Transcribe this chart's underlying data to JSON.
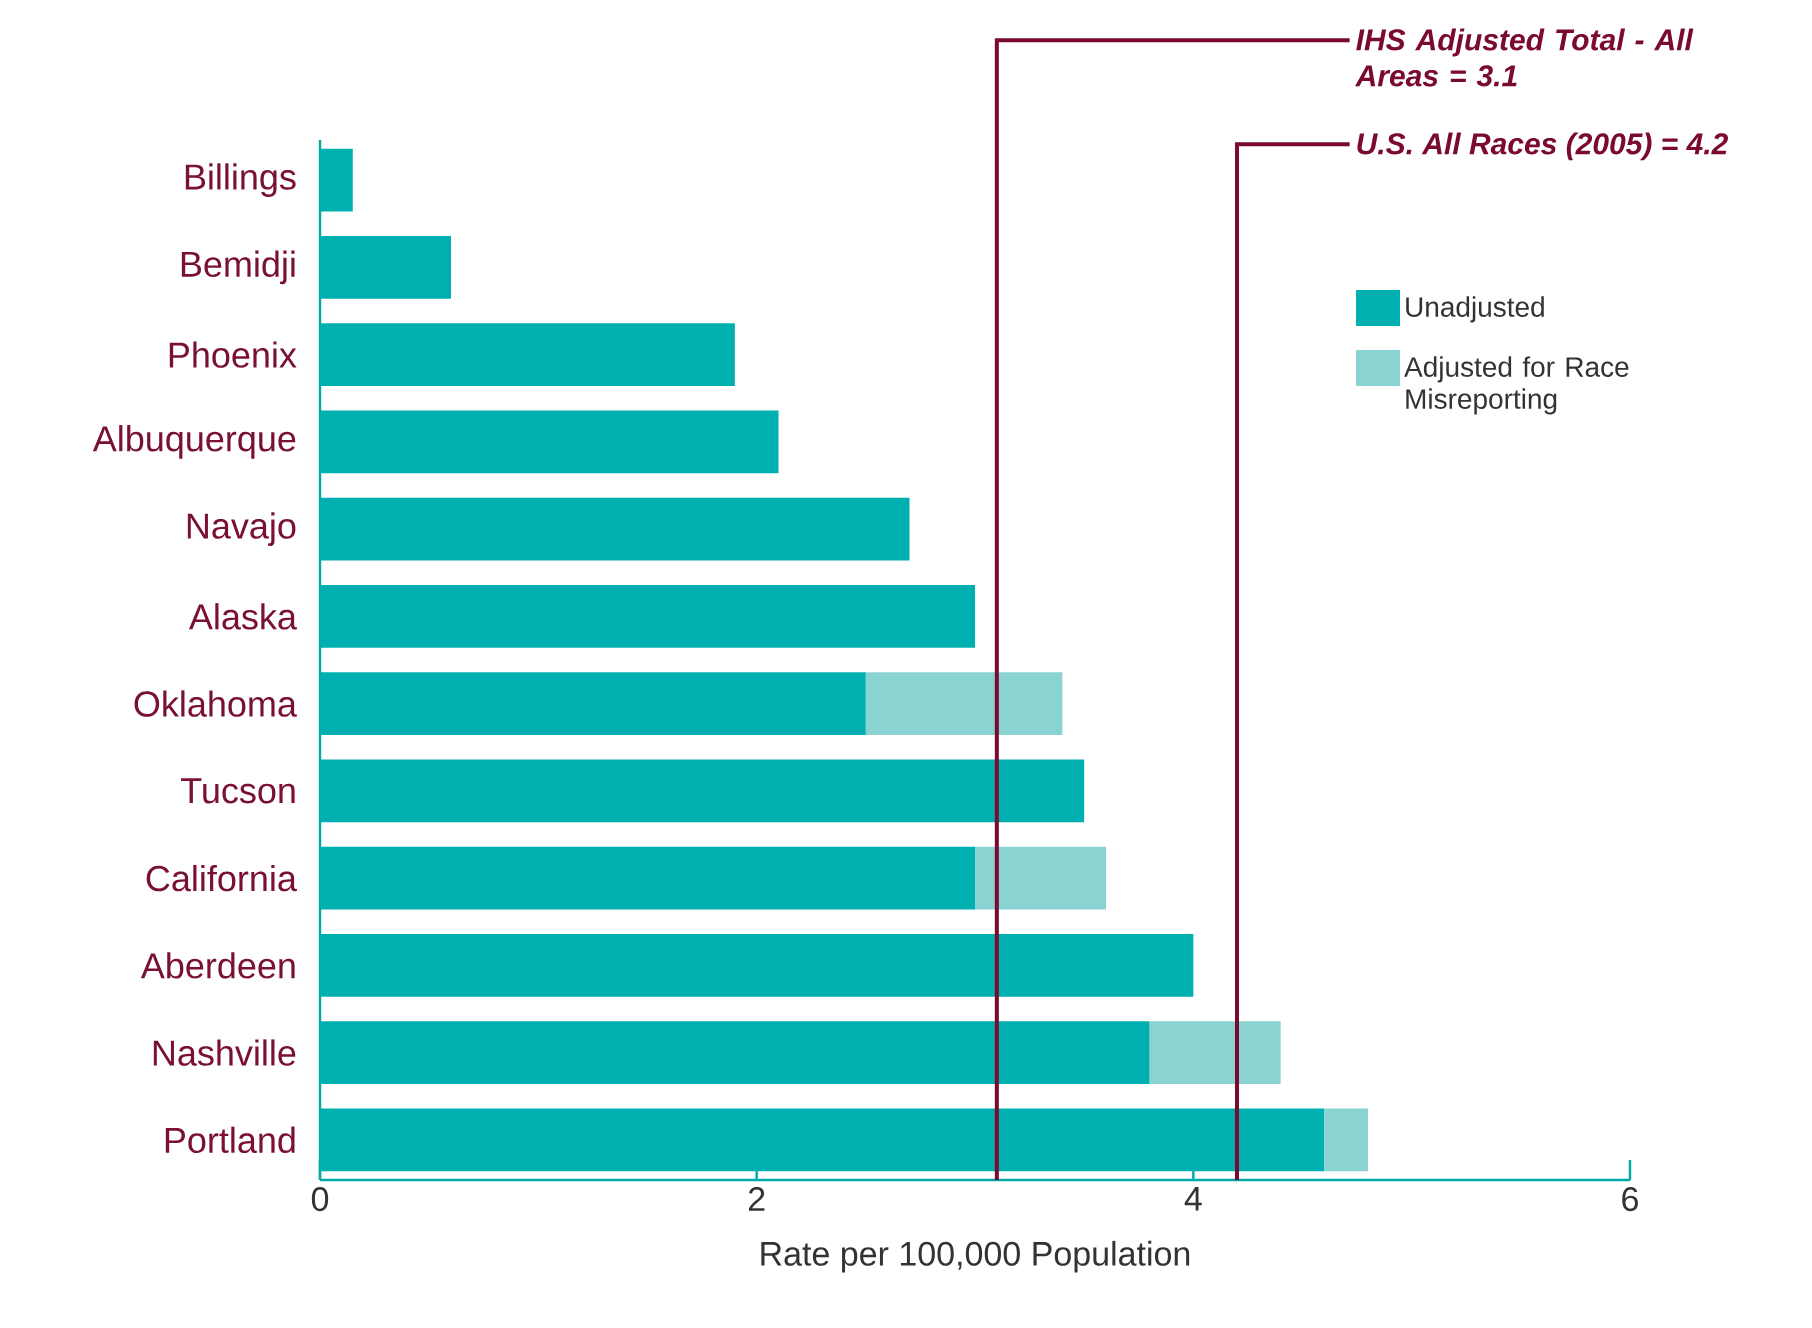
{
  "chart_data": {
    "type": "bar",
    "orientation": "horizontal",
    "stacked": true,
    "categories": [
      "Billings",
      "Bemidji",
      "Phoenix",
      "Albuquerque",
      "Navajo",
      "Alaska",
      "Oklahoma",
      "Tucson",
      "California",
      "Aberdeen",
      "Nashville",
      "Portland"
    ],
    "series": [
      {
        "name": "Unadjusted",
        "color": "#00afaf",
        "values": [
          0.15,
          0.6,
          1.9,
          2.1,
          2.7,
          3.0,
          2.5,
          3.5,
          3.0,
          4.0,
          3.8,
          4.6
        ]
      },
      {
        "name": "Adjusted for Race Misreporting",
        "color": "#8ad3d3",
        "values": [
          null,
          null,
          null,
          null,
          null,
          null,
          0.9,
          null,
          0.6,
          null,
          0.6,
          0.2
        ]
      }
    ],
    "xlabel": "Rate per 100,000 Population",
    "xlim": [
      0,
      6
    ],
    "xticks": [
      0,
      2,
      4,
      6
    ],
    "grid": false,
    "legend": "top right",
    "ref_lines": [
      {
        "axis": "x",
        "value": 3.1,
        "label": "IHS Adjusted Total - All Areas = 3.1",
        "color": "#7a0a2e"
      },
      {
        "axis": "x",
        "value": 4.2,
        "label": "U.S. All Races (2005) = 4.2",
        "color": "#7a0a2e"
      }
    ]
  }
}
